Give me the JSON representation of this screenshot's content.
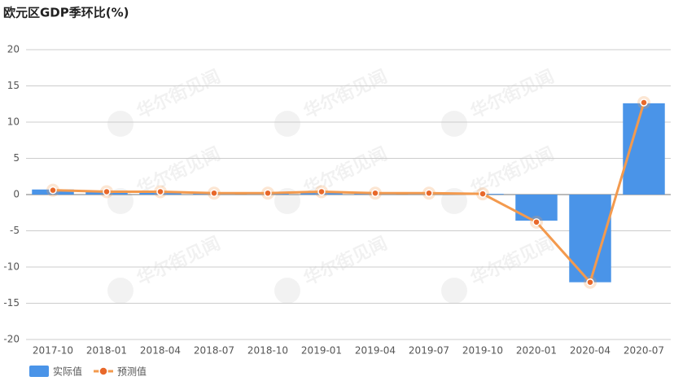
{
  "chart_data": {
    "type": "combo",
    "title": "欧元区GDP季环比(%)",
    "watermark": "华尔街见闻",
    "categories": [
      "2017-10",
      "2018-01",
      "2018-04",
      "2018-07",
      "2018-10",
      "2019-01",
      "2019-04",
      "2019-07",
      "2019-10",
      "2020-01",
      "2020-04",
      "2020-07"
    ],
    "series": [
      {
        "name": "实际值",
        "type": "bar",
        "color": "#4a94e8",
        "values": [
          0.7,
          0.4,
          0.4,
          0.2,
          0.2,
          0.4,
          0.2,
          0.2,
          0.1,
          -3.6,
          -12.1,
          12.6
        ]
      },
      {
        "name": "预测值",
        "type": "line",
        "color": "#f39a4e",
        "values": [
          0.6,
          0.4,
          0.4,
          0.2,
          0.2,
          0.4,
          0.2,
          0.2,
          0.1,
          -3.8,
          -12.1,
          12.7
        ]
      }
    ],
    "ylim": [
      -20,
      20
    ],
    "yticks": [
      -20,
      -15,
      -10,
      -5,
      0,
      5,
      10,
      15,
      20
    ],
    "grid": true
  }
}
